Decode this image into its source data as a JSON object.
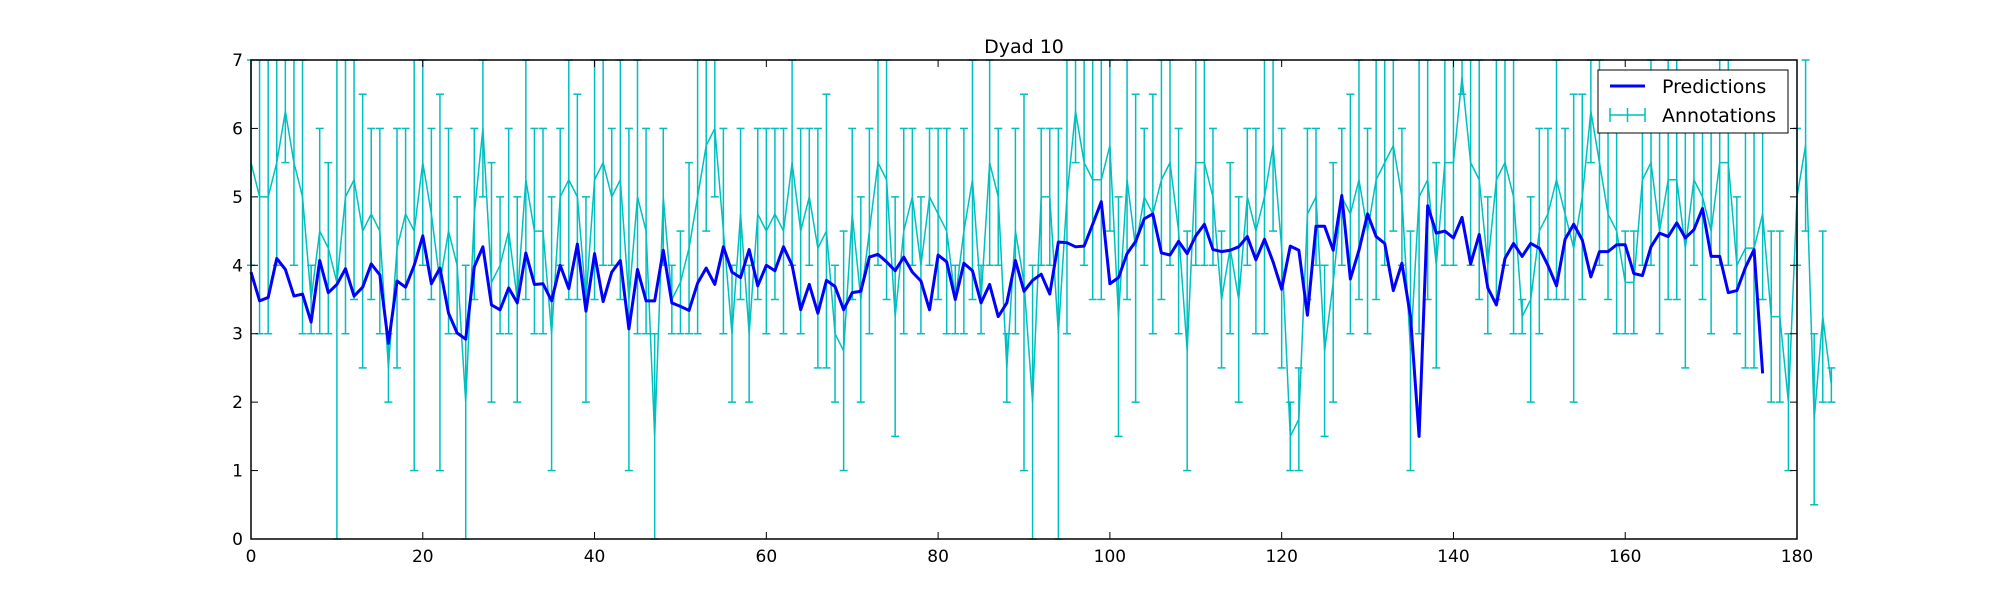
{
  "chart_data": {
    "type": "line",
    "title": "Dyad 10",
    "xlabel": "",
    "ylabel": "",
    "xlim": [
      0,
      180
    ],
    "ylim": [
      0,
      7
    ],
    "xticks": [
      0,
      20,
      40,
      60,
      80,
      100,
      120,
      140,
      160,
      180
    ],
    "yticks": [
      0,
      1,
      2,
      3,
      4,
      5,
      6,
      7
    ],
    "grid": false,
    "legend_position": "top-right",
    "series": [
      {
        "name": "Predictions",
        "color": "#0000ff",
        "style": "line",
        "x_start": 0,
        "values": [
          3.9,
          3.48,
          3.53,
          4.1,
          3.94,
          3.55,
          3.58,
          3.17,
          4.07,
          3.6,
          3.72,
          3.95,
          3.55,
          3.68,
          4.02,
          3.86,
          2.86,
          3.77,
          3.68,
          4.0,
          4.43,
          3.73,
          3.96,
          3.3,
          3.01,
          2.92,
          3.98,
          4.27,
          3.42,
          3.35,
          3.67,
          3.45,
          4.18,
          3.72,
          3.73,
          3.48,
          4.0,
          3.66,
          4.31,
          3.33,
          4.17,
          3.47,
          3.9,
          4.07,
          3.07,
          3.94,
          3.48,
          3.48,
          4.22,
          3.45,
          3.4,
          3.34,
          3.74,
          3.96,
          3.72,
          4.27,
          3.9,
          3.82,
          4.23,
          3.7,
          4.0,
          3.92,
          4.27,
          4.0,
          3.35,
          3.72,
          3.3,
          3.78,
          3.69,
          3.35,
          3.6,
          3.62,
          4.12,
          4.16,
          4.05,
          3.92,
          4.12,
          3.9,
          3.77,
          3.35,
          4.15,
          4.05,
          3.5,
          4.03,
          3.92,
          3.45,
          3.72,
          3.25,
          3.45,
          4.07,
          3.62,
          3.78,
          3.87,
          3.58,
          4.34,
          4.33,
          4.27,
          4.28,
          4.6,
          4.93,
          3.73,
          3.82,
          4.17,
          4.35,
          4.68,
          4.75,
          4.18,
          4.15,
          4.35,
          4.17,
          4.43,
          4.6,
          4.23,
          4.2,
          4.22,
          4.27,
          4.42,
          4.08,
          4.38,
          4.05,
          3.65,
          4.28,
          4.22,
          3.27,
          4.57,
          4.57,
          4.22,
          5.02,
          3.8,
          4.22,
          4.75,
          4.42,
          4.32,
          3.63,
          4.03,
          3.25,
          1.5,
          4.87,
          4.47,
          4.5,
          4.4,
          4.7,
          4.02,
          4.45,
          3.67,
          3.42,
          4.1,
          4.32,
          4.13,
          4.32,
          4.25,
          4.0,
          3.7,
          4.38,
          4.6,
          4.37,
          3.83,
          4.2,
          4.2,
          4.3,
          4.3,
          3.88,
          3.85,
          4.27,
          4.47,
          4.42,
          4.62,
          4.4,
          4.52,
          4.83,
          4.13,
          4.13,
          3.6,
          3.63,
          3.97,
          4.23,
          2.42
        ]
      },
      {
        "name": "Annotations",
        "color": "#00bfbf",
        "style": "errorbar",
        "x_start": 0,
        "values": [
          5.5,
          5.0,
          5.0,
          5.5,
          6.25,
          5.5,
          5.0,
          3.5,
          4.5,
          4.25,
          3.75,
          5.0,
          5.25,
          4.5,
          4.75,
          4.5,
          2.5,
          4.25,
          4.75,
          4.5,
          5.5,
          4.75,
          3.75,
          4.5,
          4.0,
          2.0,
          4.75,
          6.0,
          3.75,
          4.0,
          4.5,
          3.5,
          5.25,
          4.5,
          4.5,
          3.0,
          5.0,
          5.25,
          5.0,
          3.5,
          5.25,
          5.5,
          5.0,
          5.25,
          3.5,
          5.0,
          4.5,
          1.5,
          5.0,
          3.5,
          3.75,
          4.25,
          5.0,
          5.75,
          6.0,
          4.5,
          3.0,
          4.75,
          3.0,
          4.75,
          4.5,
          4.75,
          4.5,
          5.5,
          4.5,
          5.0,
          4.25,
          4.5,
          3.0,
          2.75,
          4.75,
          3.5,
          4.5,
          5.5,
          5.25,
          3.25,
          4.5,
          5.0,
          4.0,
          5.0,
          4.75,
          4.5,
          3.5,
          4.5,
          5.25,
          3.5,
          5.5,
          5.0,
          2.5,
          4.5,
          3.75,
          2.0,
          5.0,
          5.0,
          3.0,
          5.0,
          6.25,
          5.5,
          5.25,
          5.25,
          5.75,
          3.25,
          5.25,
          4.25,
          5.0,
          4.75,
          5.25,
          5.5,
          4.5,
          2.75,
          5.5,
          5.5,
          5.0,
          3.5,
          4.25,
          3.5,
          5.0,
          4.5,
          5.0,
          5.75,
          4.25,
          1.5,
          1.75,
          4.75,
          5.0,
          2.75,
          3.75,
          5.0,
          4.75,
          5.25,
          4.5,
          5.25,
          5.5,
          5.75,
          5.0,
          2.75,
          5.0,
          5.25,
          4.0,
          5.5,
          5.5,
          6.75,
          5.5,
          5.25,
          4.0,
          5.25,
          5.5,
          5.0,
          3.25,
          3.5,
          4.5,
          4.75,
          5.25,
          4.75,
          4.25,
          5.0,
          6.25,
          5.5,
          4.75,
          4.5,
          3.75,
          3.75,
          5.25,
          5.5,
          4.5,
          5.25,
          5.25,
          4.25,
          5.25,
          5.0,
          4.5,
          5.5,
          5.5,
          4.0,
          4.25,
          4.25,
          4.75,
          3.25,
          3.25,
          2.0,
          5.0,
          5.75,
          1.75,
          3.25,
          2.25
        ],
        "errors": [
          1.5,
          2.0,
          2.0,
          1.5,
          0.75,
          1.5,
          2.0,
          0.5,
          1.5,
          1.25,
          3.75,
          2.0,
          1.75,
          2.0,
          1.25,
          1.5,
          0.5,
          1.75,
          1.25,
          3.5,
          1.5,
          1.25,
          2.75,
          1.5,
          1.0,
          2.0,
          1.25,
          1.0,
          1.75,
          1.0,
          1.5,
          1.5,
          1.75,
          1.5,
          1.5,
          2.0,
          1.0,
          1.75,
          1.5,
          1.5,
          1.75,
          1.5,
          1.0,
          1.75,
          2.5,
          2.0,
          1.5,
          1.5,
          1.0,
          0.5,
          0.75,
          1.25,
          2.0,
          1.25,
          1.0,
          1.5,
          1.0,
          1.25,
          1.0,
          1.25,
          1.5,
          1.25,
          1.5,
          1.5,
          1.5,
          1.0,
          1.75,
          2.0,
          1.0,
          1.75,
          1.25,
          1.5,
          1.5,
          1.5,
          1.75,
          1.75,
          1.5,
          1.0,
          1.0,
          1.0,
          1.25,
          1.5,
          0.5,
          1.5,
          1.75,
          0.5,
          1.5,
          1.0,
          0.5,
          1.5,
          2.75,
          2.0,
          1.0,
          1.0,
          3.0,
          2.0,
          0.75,
          1.5,
          1.75,
          1.75,
          1.25,
          1.75,
          1.75,
          2.25,
          1.0,
          1.75,
          1.75,
          1.5,
          1.5,
          1.75,
          1.5,
          1.5,
          1.0,
          1.0,
          1.25,
          1.5,
          1.0,
          1.5,
          2.0,
          1.25,
          1.75,
          0.5,
          0.75,
          1.25,
          1.0,
          1.25,
          1.75,
          1.0,
          1.75,
          1.75,
          1.5,
          1.75,
          1.5,
          1.25,
          1.0,
          1.75,
          2.0,
          1.75,
          1.5,
          1.5,
          1.5,
          0.25,
          1.5,
          1.75,
          1.0,
          1.75,
          1.5,
          2.0,
          0.25,
          1.5,
          1.5,
          1.25,
          1.75,
          1.25,
          2.25,
          1.5,
          0.75,
          1.5,
          1.25,
          1.5,
          0.75,
          0.75,
          1.25,
          1.5,
          1.5,
          1.75,
          1.75,
          1.75,
          1.25,
          1.5,
          1.5,
          1.5,
          1.5,
          1.0,
          1.75,
          1.75,
          1.25,
          1.25,
          1.25,
          1.0,
          1.0,
          1.25,
          1.25,
          1.25,
          0.25
        ]
      }
    ]
  }
}
